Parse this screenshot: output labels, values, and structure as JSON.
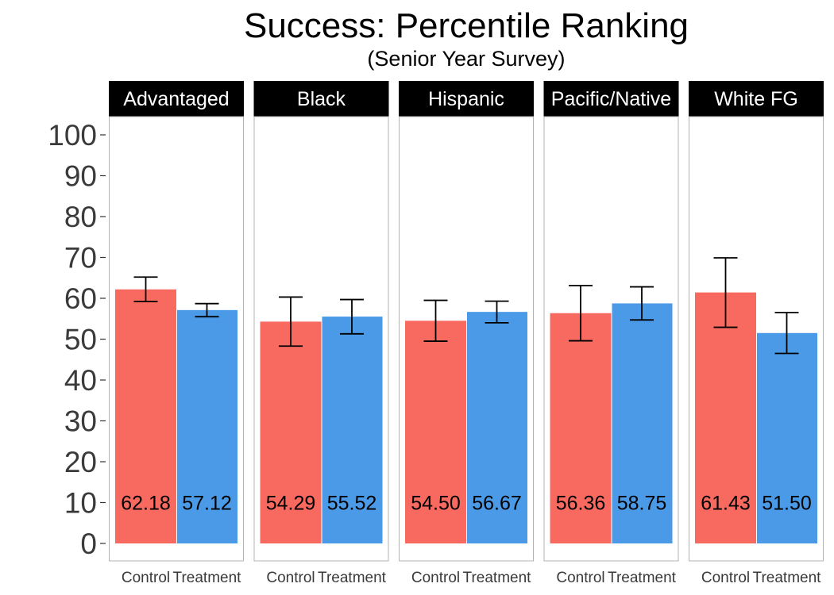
{
  "chart_data": {
    "type": "bar",
    "title": "Success: Percentile Ranking",
    "subtitle": "(Senior Year Survey)",
    "ylim": [
      0,
      100
    ],
    "yticks": [
      0,
      10,
      20,
      30,
      40,
      50,
      60,
      70,
      80,
      90,
      100
    ],
    "categories": [
      "Control",
      "Treatment"
    ],
    "grid": false,
    "legend": "none",
    "colors": {
      "Control": "#f8695f",
      "Treatment": "#4a9ae8"
    },
    "label_y": 10,
    "panels": [
      {
        "name": "Advantaged",
        "series": [
          {
            "group": "Control",
            "value": 62.18,
            "label": "62.18",
            "err": [
              59.2,
              65.2
            ]
          },
          {
            "group": "Treatment",
            "value": 57.12,
            "label": "57.12",
            "err": [
              55.5,
              58.7
            ]
          }
        ]
      },
      {
        "name": "Black",
        "series": [
          {
            "group": "Control",
            "value": 54.29,
            "label": "54.29",
            "err": [
              48.3,
              60.3
            ]
          },
          {
            "group": "Treatment",
            "value": 55.52,
            "label": "55.52",
            "err": [
              51.3,
              59.7
            ]
          }
        ]
      },
      {
        "name": "Hispanic",
        "series": [
          {
            "group": "Control",
            "value": 54.5,
            "label": "54.50",
            "err": [
              49.5,
              59.5
            ]
          },
          {
            "group": "Treatment",
            "value": 56.67,
            "label": "56.67",
            "err": [
              54.0,
              59.3
            ]
          }
        ]
      },
      {
        "name": "Pacific/Native",
        "series": [
          {
            "group": "Control",
            "value": 56.36,
            "label": "56.36",
            "err": [
              49.6,
              63.1
            ]
          },
          {
            "group": "Treatment",
            "value": 58.75,
            "label": "58.75",
            "err": [
              54.7,
              62.8
            ]
          }
        ]
      },
      {
        "name": "White FG",
        "series": [
          {
            "group": "Control",
            "value": 61.43,
            "label": "61.43",
            "err": [
              52.9,
              69.9
            ]
          },
          {
            "group": "Treatment",
            "value": 51.5,
            "label": "51.50",
            "err": [
              46.5,
              56.5
            ]
          }
        ]
      }
    ]
  }
}
